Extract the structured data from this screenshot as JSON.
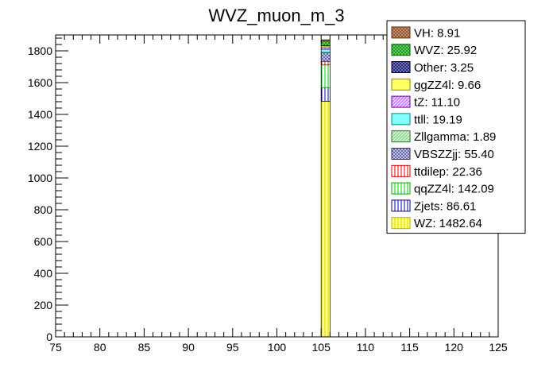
{
  "chart_data": {
    "type": "bar",
    "stacked": true,
    "title": "WVZ_muon_m_3",
    "xlabel": "",
    "ylabel": "",
    "xlim": [
      75,
      125
    ],
    "ylim": [
      0,
      1900
    ],
    "x_ticks": [
      75,
      80,
      85,
      90,
      95,
      100,
      105,
      110,
      115,
      120,
      125
    ],
    "y_ticks": [
      0,
      200,
      400,
      600,
      800,
      1000,
      1200,
      1400,
      1600,
      1800
    ],
    "bin": [
      105,
      106
    ],
    "legend_position": "top-right",
    "series": [
      {
        "name": "WZ",
        "label": "WZ: 1482.64",
        "value": 1482.64,
        "color": "#ffff80",
        "edge": "#b0b000",
        "pattern": "vert",
        "patcolor": "#d8d800"
      },
      {
        "name": "Zjets",
        "label": "Zjets: 86.61",
        "value": 86.61,
        "color": "#ffffff",
        "edge": "#000099",
        "pattern": "vert",
        "patcolor": "#0000aa"
      },
      {
        "name": "qqZZ4l",
        "label": "qqZZ4l: 142.09",
        "value": 142.09,
        "color": "#ffffff",
        "edge": "#00aa00",
        "pattern": "vert",
        "patcolor": "#00cc00"
      },
      {
        "name": "ttdilep",
        "label": "ttdilep: 22.36",
        "value": 22.36,
        "color": "#ffffff",
        "edge": "#cc0000",
        "pattern": "vert",
        "patcolor": "#dd0000"
      },
      {
        "name": "VBSZZjj",
        "label": "VBSZZjj: 55.40",
        "value": 55.4,
        "color": "#ccccff",
        "edge": "#333366",
        "pattern": "cross",
        "patcolor": "#333366"
      },
      {
        "name": "Zllgamma",
        "label": "Zllgamma: 1.89",
        "value": 1.89,
        "color": "#99dd99",
        "edge": "#336633",
        "pattern": "diag",
        "patcolor": "#ffffff"
      },
      {
        "name": "ttll",
        "label": "ttll: 19.19",
        "value": 19.19,
        "color": "#80ffff",
        "edge": "#008888",
        "pattern": "none",
        "patcolor": "#000000"
      },
      {
        "name": "tZ",
        "label": "tZ: 11.10",
        "value": 11.1,
        "color": "#cc88ff",
        "edge": "#6600aa",
        "pattern": "diag",
        "patcolor": "#ffffff"
      },
      {
        "name": "ggZZ4l",
        "label": "ggZZ4l: 9.66",
        "value": 9.66,
        "color": "#ffff66",
        "edge": "#888800",
        "pattern": "none",
        "patcolor": "#000000"
      },
      {
        "name": "Other",
        "label": "Other: 3.25",
        "value": 3.25,
        "color": "#7777cc",
        "edge": "#000033",
        "pattern": "cross",
        "patcolor": "#000033"
      },
      {
        "name": "WVZ",
        "label": "WVZ: 25.92",
        "value": 25.92,
        "color": "#66dd66",
        "edge": "#006600",
        "pattern": "cross",
        "patcolor": "#006600"
      },
      {
        "name": "VH",
        "label": "VH: 8.91",
        "value": 8.91,
        "color": "#cc9977",
        "edge": "#663311",
        "pattern": "cross",
        "patcolor": "#663311"
      }
    ]
  }
}
